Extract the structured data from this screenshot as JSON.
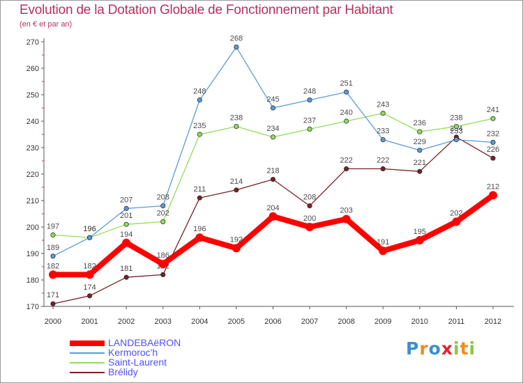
{
  "chart_data": {
    "type": "line",
    "title": "Evolution de la Dotation Globale de Fonctionnement par Habitant",
    "subtitle": "(en € et par an)",
    "xlabel": "",
    "ylabel": "",
    "categories": [
      "2000",
      "2001",
      "2002",
      "2003",
      "2004",
      "2005",
      "2006",
      "2007",
      "2008",
      "2009",
      "2010",
      "2011",
      "2012"
    ],
    "ylim": [
      170,
      270
    ],
    "yticks": [
      170,
      180,
      190,
      200,
      210,
      220,
      230,
      240,
      250,
      260,
      270
    ],
    "grid": false,
    "legend_position": "bottom-left",
    "series": [
      {
        "name": "Brélidy",
        "color": "#7a1e24",
        "values": [
          171,
          174,
          181,
          182,
          211,
          214,
          218,
          208,
          222,
          222,
          221,
          234,
          226
        ]
      },
      {
        "name": "Saint-Laurent",
        "color": "#8fdc5a",
        "values": [
          197,
          196,
          201,
          202,
          235,
          238,
          234,
          237,
          240,
          243,
          236,
          238,
          241
        ]
      },
      {
        "name": "Kermoroc'h",
        "color": "#5a9ad6",
        "values": [
          189,
          196,
          207,
          208,
          248,
          268,
          245,
          248,
          251,
          233,
          229,
          233,
          232
        ]
      },
      {
        "name": "LANDEBAëRON",
        "color": "#ff0000",
        "values": [
          182,
          182,
          194,
          186,
          196,
          192,
          204,
          200,
          203,
          191,
          195,
          202,
          212
        ]
      }
    ]
  },
  "logo": {
    "letters": [
      "P",
      "r",
      "o",
      "x",
      "i",
      "t",
      "i"
    ],
    "colors": [
      "#3a8fd0",
      "#f08a1c",
      "#3a8fd0",
      "#e8222a",
      "#8cc63f",
      "#f08a1c",
      "#8cc63f"
    ]
  }
}
